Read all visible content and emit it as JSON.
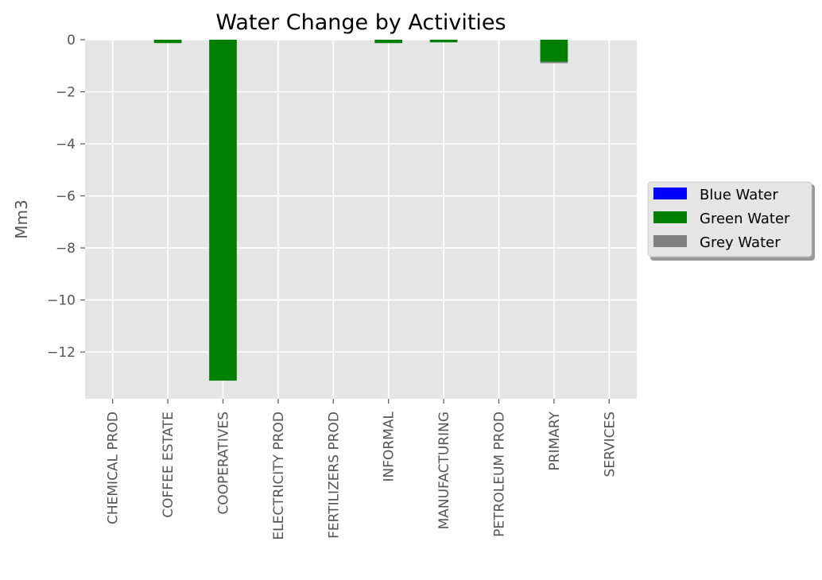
{
  "chart_data": {
    "type": "bar",
    "stacked": true,
    "title": "Water Change by Activities",
    "xlabel": "",
    "ylabel": "Mm3",
    "ylim": [
      -13.8,
      0
    ],
    "yticks": [
      0,
      -2,
      -4,
      -6,
      -8,
      -10,
      -12
    ],
    "ytick_labels": [
      "0",
      "−2",
      "−4",
      "−6",
      "−8",
      "−10",
      "−12"
    ],
    "grid": true,
    "legend_position": "center-right-outside",
    "categories": [
      "CHEMICAL PROD",
      "COFFEE ESTATE",
      "COOPERATIVES",
      "ELECTRICITY PROD",
      "FERTILIZERS PROD",
      "INFORMAL",
      "MANUFACTURING",
      "PETROLEUM PROD",
      "PRIMARY",
      "SERVICES"
    ],
    "series": [
      {
        "name": "Blue Water",
        "color": "#0000ff",
        "values": [
          0,
          0,
          0,
          0,
          0,
          0,
          0,
          0,
          0,
          0
        ]
      },
      {
        "name": "Green Water",
        "color": "#008000",
        "values": [
          0,
          -0.13,
          -13.1,
          0,
          0,
          -0.13,
          -0.1,
          0,
          -0.85,
          0
        ]
      },
      {
        "name": "Grey Water",
        "color": "#808080",
        "values": [
          0,
          0,
          0,
          0,
          0,
          0,
          0,
          0,
          -0.05,
          0
        ]
      }
    ],
    "colors": {
      "background": "#e5e5e5",
      "grid": "#ffffff",
      "tick_text": "#555555"
    }
  }
}
